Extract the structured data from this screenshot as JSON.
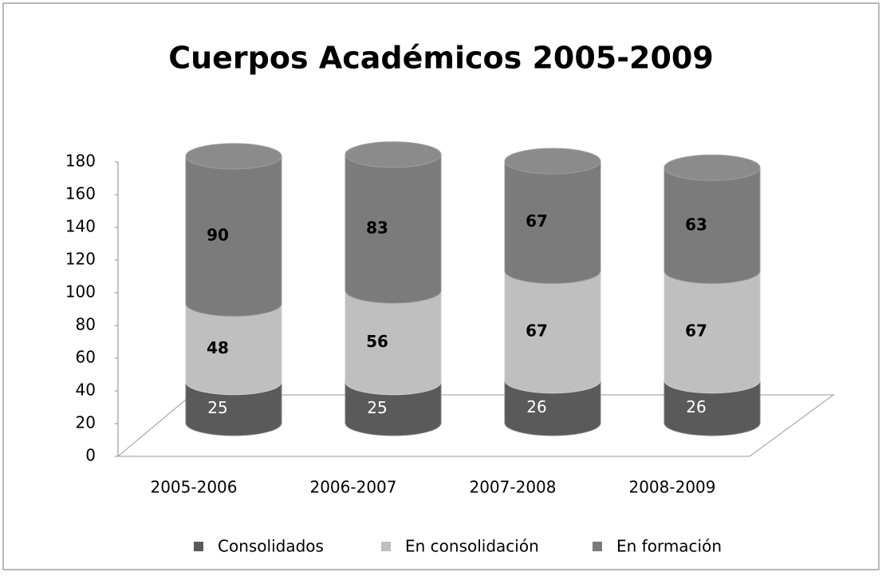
{
  "chart_data": {
    "type": "stacked_cylinder",
    "title": "Cuerpos Académicos 2005-2009",
    "categories": [
      "2005-2006",
      "2006-2007",
      "2007-2008",
      "2008-2009"
    ],
    "series": [
      {
        "name": "Consolidados",
        "color": "#5a5a5a",
        "values": [
          25,
          25,
          26,
          26
        ]
      },
      {
        "name": "En consolidación",
        "color": "#bfbfbf",
        "values": [
          48,
          56,
          67,
          67
        ]
      },
      {
        "name": "En formación",
        "color": "#7b7b7b",
        "values": [
          90,
          83,
          67,
          63
        ]
      }
    ],
    "ylim": [
      0,
      180
    ],
    "yticks": [
      0,
      20,
      40,
      60,
      80,
      100,
      120,
      140,
      160,
      180
    ],
    "legend": "bottom"
  }
}
